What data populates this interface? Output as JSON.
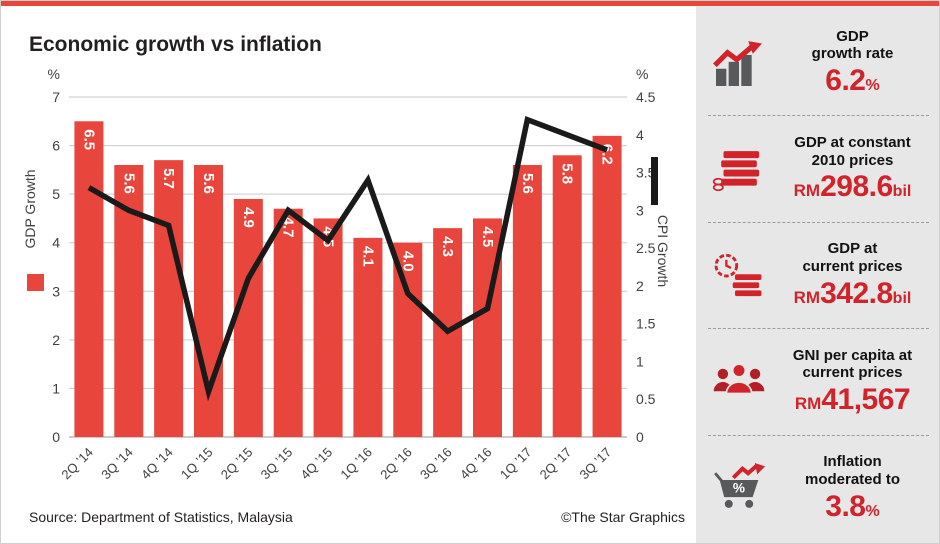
{
  "title": "Economic growth vs inflation",
  "footer": {
    "source": "Source: Department of Statistics, Malaysia",
    "credit": "©The Star Graphics"
  },
  "colors": {
    "bar_red": "#e8463c",
    "stat_red": "#d0232a",
    "line_black": "#1a1a1a",
    "sidebar_bg": "#e7e7e8",
    "grid_gray": "#c9c9c9",
    "text_dark": "#414042"
  },
  "chart_data": {
    "type": "bar",
    "subtype": "bar-plus-line-dual-axis",
    "categories": [
      "2Q ’14",
      "3Q ’14",
      "4Q ’14",
      "1Q ’15",
      "2Q ’15",
      "3Q ’15",
      "4Q ’15",
      "1Q ’16",
      "2Q ’16",
      "3Q ’16",
      "4Q ’16",
      "1Q ’17",
      "2Q ’17",
      "3Q ’17"
    ],
    "series": [
      {
        "name": "GDP Growth",
        "type": "bar",
        "axis": "left",
        "values": [
          6.5,
          5.6,
          5.7,
          5.6,
          4.9,
          4.7,
          4.5,
          4.1,
          4.0,
          4.3,
          4.5,
          5.6,
          5.8,
          6.2
        ]
      },
      {
        "name": "CPI Growth",
        "type": "line",
        "axis": "right",
        "values": [
          3.3,
          3.0,
          2.8,
          0.6,
          2.1,
          3.0,
          2.6,
          3.4,
          1.9,
          1.4,
          1.7,
          4.2,
          4.0,
          3.8
        ]
      }
    ],
    "left_axis": {
      "label": "GDP Growth",
      "unit": "%",
      "min": 0,
      "max": 7,
      "step": 1
    },
    "right_axis": {
      "label": "CPI Growth",
      "unit": "%",
      "min": 0,
      "max": 4.5,
      "step": 0.5
    },
    "grid": "horizontal",
    "legend_position": "sides"
  },
  "sidebar": {
    "cards": [
      {
        "icon": "bar-chart-up-arrow-icon",
        "label_lines": [
          "GDP",
          "growth rate"
        ],
        "value_prefix": "",
        "value": "6.2",
        "value_suffix": "%"
      },
      {
        "icon": "money-stack-icon",
        "label_lines": [
          "GDP at constant",
          "2010 prices"
        ],
        "value_prefix": "RM",
        "value": "298.6",
        "value_suffix": "bil"
      },
      {
        "icon": "clock-money-icon",
        "label_lines": [
          "GDP at",
          "current prices"
        ],
        "value_prefix": "RM",
        "value": "342.8",
        "value_suffix": "bil"
      },
      {
        "icon": "people-icon",
        "label_lines": [
          "GNI per capita at",
          "current prices"
        ],
        "value_prefix": "RM",
        "value": "41,567",
        "value_suffix": ""
      },
      {
        "icon": "cart-percent-icon",
        "label_lines": [
          "Inflation",
          "moderated to"
        ],
        "value_prefix": "",
        "value": "3.8",
        "value_suffix": "%"
      }
    ]
  }
}
